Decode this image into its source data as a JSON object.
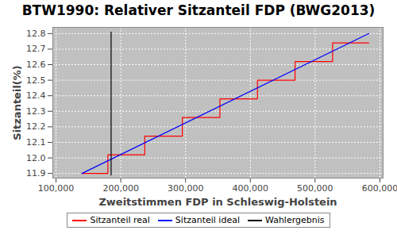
{
  "chart_data": {
    "type": "line",
    "title": "BTW1990: Relativer Sitzanteil FDP (BWG2013)",
    "x_label": "Zweitstimmen FDP in Schleswig-Holstein",
    "y_label": "Sitzanteil(%)",
    "series": [
      {
        "name": "Sitzanteil real",
        "color": "#ff0000",
        "line_style": "step",
        "x": [
          140000,
          180000,
          237000,
          295000,
          353000,
          411000,
          469000,
          527000,
          583000
        ],
        "values": [
          11.9,
          12.02,
          12.14,
          12.26,
          12.38,
          12.5,
          12.62,
          12.74,
          12.74
        ]
      },
      {
        "name": "Sitzanteil ideal",
        "color": "#0000ff",
        "line_style": "solid",
        "x": [
          140000,
          583000
        ],
        "values": [
          11.9,
          12.8
        ]
      },
      {
        "name": "Wahlergebnis",
        "color": "#000000",
        "line_style": "solid",
        "x": [
          185000,
          185000
        ],
        "values": [
          11.89,
          12.81
        ]
      }
    ],
    "xlim": [
      95000,
      605000
    ],
    "xticks": [
      {
        "value": 100000,
        "label": "100,000"
      },
      {
        "value": 200000,
        "label": "200,000"
      },
      {
        "value": 300000,
        "label": "300,000"
      },
      {
        "value": 400000,
        "label": "400,000"
      },
      {
        "value": 500000,
        "label": "500,000"
      },
      {
        "value": 600000,
        "label": "600,000"
      }
    ],
    "ylim": [
      11.87,
      12.84
    ],
    "yticks": [
      11.9,
      {
        "value": 12,
        "label": "12.0"
      },
      12.1,
      12.2,
      12.3,
      12.4,
      12.5,
      12.6,
      12.7,
      12.8
    ],
    "grid": true,
    "legend": "bottom"
  }
}
